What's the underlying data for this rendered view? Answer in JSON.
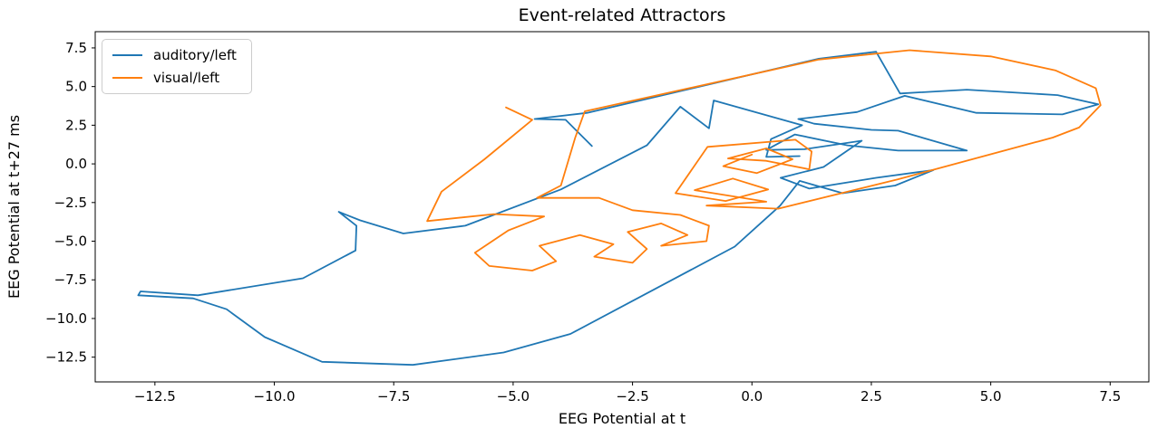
{
  "title": "Event-related Attractors",
  "chart_data": {
    "type": "line",
    "title": "Event-related Attractors",
    "xlabel": "EEG Potential at t",
    "ylabel": "EEG Potential at t+27 ms",
    "xlim": [
      -13.75,
      8.31
    ],
    "ylim": [
      -14.1,
      8.55
    ],
    "xticks": [
      -12.5,
      -10.0,
      -7.5,
      -5.0,
      -2.5,
      0.0,
      2.5,
      5.0,
      7.5
    ],
    "yticks": [
      7.5,
      5.0,
      2.5,
      0.0,
      -2.5,
      -5.0,
      -7.5,
      -10.0,
      -12.5
    ],
    "grid": false,
    "legend_position": "upper left",
    "background": "#ffffff",
    "series": [
      {
        "name": "auditory/left",
        "color": "#1f77b4",
        "points": [
          [
            -3.35,
            1.15
          ],
          [
            -3.9,
            2.85
          ],
          [
            -4.55,
            2.9
          ],
          [
            -3.45,
            3.3
          ],
          [
            1.4,
            6.8
          ],
          [
            2.6,
            7.25
          ],
          [
            3.1,
            4.55
          ],
          [
            4.5,
            4.8
          ],
          [
            6.4,
            4.45
          ],
          [
            7.25,
            3.85
          ],
          [
            6.5,
            3.2
          ],
          [
            4.7,
            3.3
          ],
          [
            3.2,
            4.4
          ],
          [
            2.2,
            3.35
          ],
          [
            0.97,
            2.9
          ],
          [
            1.3,
            2.6
          ],
          [
            2.5,
            2.2
          ],
          [
            3.06,
            2.15
          ],
          [
            4.5,
            0.86
          ],
          [
            3.06,
            0.86
          ],
          [
            2.0,
            1.2
          ],
          [
            0.9,
            1.9
          ],
          [
            0.3,
            0.9
          ],
          [
            1.1,
            0.95
          ],
          [
            2.3,
            1.5
          ],
          [
            1.5,
            -0.2
          ],
          [
            0.6,
            -0.9
          ],
          [
            1.2,
            -1.6
          ],
          [
            2.6,
            -0.9
          ],
          [
            3.8,
            -0.4
          ],
          [
            3.0,
            -1.4
          ],
          [
            1.9,
            -1.9
          ],
          [
            1.0,
            -1.1
          ],
          [
            0.59,
            -2.7
          ],
          [
            -0.36,
            -5.35
          ],
          [
            -3.8,
            -11.0
          ],
          [
            -5.2,
            -12.2
          ],
          [
            -7.1,
            -13.0
          ],
          [
            -9.0,
            -12.8
          ],
          [
            -10.2,
            -11.2
          ],
          [
            -11.0,
            -9.4
          ],
          [
            -11.7,
            -8.7
          ],
          [
            -12.85,
            -8.5
          ],
          [
            -12.8,
            -8.25
          ],
          [
            -11.6,
            -8.5
          ],
          [
            -9.4,
            -7.4
          ],
          [
            -8.3,
            -5.6
          ],
          [
            -8.28,
            -4.0
          ],
          [
            -8.65,
            -3.1
          ],
          [
            -8.2,
            -3.65
          ],
          [
            -7.3,
            -4.5
          ],
          [
            -6.0,
            -4.0
          ],
          [
            -4.0,
            -1.65
          ],
          [
            -2.2,
            1.2
          ],
          [
            -1.5,
            3.7
          ],
          [
            -0.9,
            2.3
          ],
          [
            -0.8,
            4.1
          ],
          [
            1.05,
            2.5
          ],
          [
            0.4,
            1.6
          ],
          [
            0.3,
            0.45
          ],
          [
            1.0,
            0.5
          ]
        ]
      },
      {
        "name": "visual/left",
        "color": "#ff7f0e",
        "points": [
          [
            -5.15,
            3.65
          ],
          [
            -4.6,
            2.85
          ],
          [
            -5.6,
            0.3
          ],
          [
            -6.5,
            -1.8
          ],
          [
            -6.8,
            -3.7
          ],
          [
            -5.4,
            -3.25
          ],
          [
            -4.35,
            -3.4
          ],
          [
            -5.1,
            -4.3
          ],
          [
            -5.8,
            -5.75
          ],
          [
            -5.5,
            -6.6
          ],
          [
            -4.6,
            -6.9
          ],
          [
            -4.1,
            -6.3
          ],
          [
            -4.45,
            -5.3
          ],
          [
            -3.6,
            -4.6
          ],
          [
            -2.9,
            -5.2
          ],
          [
            -3.3,
            -6.0
          ],
          [
            -2.5,
            -6.4
          ],
          [
            -2.2,
            -5.5
          ],
          [
            -2.6,
            -4.4
          ],
          [
            -1.9,
            -3.85
          ],
          [
            -1.35,
            -4.6
          ],
          [
            -1.9,
            -5.3
          ],
          [
            -0.95,
            -5.0
          ],
          [
            -0.9,
            -4.0
          ],
          [
            -1.5,
            -3.3
          ],
          [
            -2.5,
            -3.0
          ],
          [
            -3.2,
            -2.2
          ],
          [
            -4.5,
            -2.2
          ],
          [
            -4.0,
            -1.4
          ],
          [
            -3.7,
            1.7
          ],
          [
            -3.5,
            3.4
          ],
          [
            1.4,
            6.75
          ],
          [
            3.3,
            7.35
          ],
          [
            5.0,
            6.95
          ],
          [
            6.35,
            6.05
          ],
          [
            7.2,
            4.9
          ],
          [
            7.3,
            3.8
          ],
          [
            6.85,
            2.35
          ],
          [
            6.3,
            1.7
          ],
          [
            3.05,
            -1.0
          ],
          [
            0.55,
            -2.9
          ],
          [
            -0.95,
            -2.7
          ],
          [
            0.3,
            -2.45
          ],
          [
            -1.2,
            -1.7
          ],
          [
            -0.4,
            -0.95
          ],
          [
            0.34,
            -1.66
          ],
          [
            -0.55,
            -2.4
          ],
          [
            -1.6,
            -1.9
          ],
          [
            -0.93,
            1.1
          ],
          [
            0.91,
            1.56
          ],
          [
            1.25,
            0.8
          ],
          [
            1.2,
            -0.35
          ],
          [
            0.3,
            0.2
          ],
          [
            -0.5,
            0.35
          ],
          [
            0.3,
            1.0
          ],
          [
            0.85,
            0.3
          ],
          [
            0.1,
            -0.6
          ],
          [
            -0.6,
            -0.15
          ],
          [
            0.0,
            0.6
          ]
        ]
      }
    ]
  }
}
